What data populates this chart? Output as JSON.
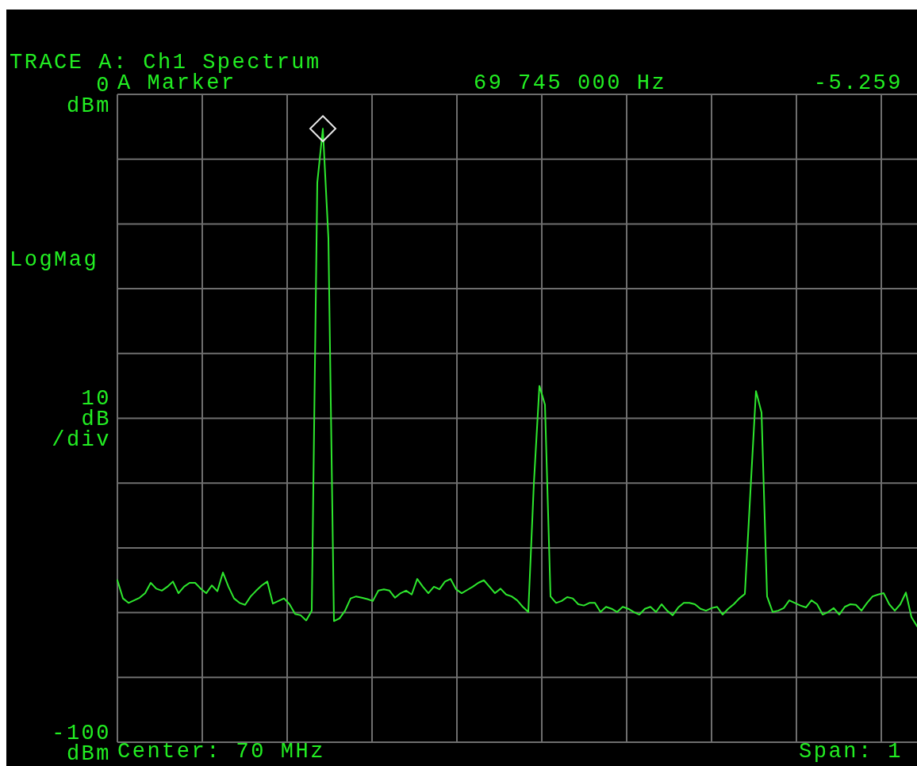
{
  "chart_data": {
    "type": "line",
    "title": "TRACE A: Ch1 Spectrum",
    "ylabel": "10 dB /div",
    "annotations": [
      "A Marker",
      "69 745 000 Hz",
      "-5.259",
      "LogMag",
      "Center: 70 MHz",
      "Span: 1"
    ],
    "categories": [
      null,
      null,
      null,
      null,
      null,
      null,
      null,
      null,
      null,
      null,
      null,
      null,
      null,
      null,
      null,
      null,
      null,
      null,
      null,
      null,
      null,
      null,
      null,
      null,
      null,
      null,
      null,
      null,
      null,
      null,
      null,
      null,
      null,
      null,
      null,
      null,
      null,
      null,
      null,
      null,
      null,
      null,
      null,
      null,
      null,
      null,
      null,
      null,
      null,
      null,
      null,
      null,
      null,
      null,
      null,
      null,
      null,
      null,
      null,
      null,
      null,
      null,
      null,
      null,
      null,
      null,
      null,
      null,
      null,
      null,
      null,
      null,
      null,
      null,
      null,
      null,
      null,
      null,
      null,
      null,
      null,
      null,
      null,
      null,
      null,
      null,
      null,
      null,
      null,
      null,
      null,
      null,
      null,
      null,
      null,
      null,
      null,
      null,
      null,
      null,
      null,
      null,
      null,
      null,
      null,
      null,
      null,
      null,
      null,
      null,
      null,
      null,
      null,
      null,
      null,
      null,
      null,
      null,
      null,
      null,
      null,
      null,
      null,
      null,
      null,
      null,
      null,
      null,
      null,
      null,
      null,
      null,
      null,
      null,
      null,
      null,
      null,
      null,
      null,
      null,
      null,
      null,
      null,
      null,
      null
    ],
    "series": [
      {
        "color": "#2ee82e",
        "values": [
          -75.0,
          -77.8,
          -78.5,
          -78.1,
          -77.7,
          -77.0,
          -75.4,
          -76.3,
          -76.6,
          -76.0,
          -75.2,
          -77.0,
          -76.0,
          -75.4,
          -75.4,
          -76.3,
          -77.0,
          -75.8,
          -76.7,
          -73.8,
          -76.0,
          -77.8,
          -78.5,
          -78.8,
          -77.5,
          -76.6,
          -75.8,
          -75.2,
          -78.6,
          -78.2,
          -77.8,
          -78.7,
          -80.2,
          -80.4,
          -81.2,
          -79.7,
          -13.6,
          -5.3,
          -22.2,
          -81.3,
          -80.9,
          -79.7,
          -77.8,
          -77.5,
          -77.7,
          -77.9,
          -78.2,
          -76.6,
          -76.4,
          -76.6,
          -77.7,
          -77.0,
          -76.6,
          -77.2,
          -74.8,
          -76.0,
          -77.0,
          -76.0,
          -76.4,
          -75.2,
          -74.8,
          -76.4,
          -77.0,
          -76.5,
          -76.0,
          -75.4,
          -75.0,
          -76.0,
          -77.0,
          -76.3,
          -77.2,
          -77.5,
          -78.1,
          -79.1,
          -79.9,
          -60.1,
          -45.0,
          -47.9,
          -77.5,
          -78.5,
          -78.2,
          -77.6,
          -77.8,
          -78.7,
          -78.9,
          -78.5,
          -78.5,
          -79.9,
          -79.1,
          -79.4,
          -79.9,
          -79.1,
          -79.4,
          -79.9,
          -80.3,
          -79.4,
          -79.1,
          -79.9,
          -78.7,
          -79.7,
          -80.4,
          -79.2,
          -78.5,
          -78.5,
          -78.7,
          -79.4,
          -79.7,
          -79.3,
          -79.1,
          -80.3,
          -79.4,
          -78.7,
          -77.8,
          -77.1,
          -61.3,
          -45.8,
          -49.1,
          -77.5,
          -79.9,
          -79.7,
          -79.3,
          -78.1,
          -78.5,
          -78.9,
          -79.2,
          -78.1,
          -78.7,
          -80.3,
          -79.9,
          -79.3,
          -80.3,
          -79.1,
          -78.7,
          -78.8,
          -79.7,
          -78.5,
          -77.5,
          -77.2,
          -77.0,
          -78.7,
          -79.7,
          -78.7,
          -76.9,
          -80.7,
          -82.1
        ]
      }
    ],
    "ylim": [
      -100,
      0
    ],
    "yticks": [
      {
        "value": 0,
        "label": "0 dBm"
      },
      {
        "value": -10,
        "label": null
      },
      {
        "value": -20,
        "label": null
      },
      {
        "value": -30,
        "label": null
      },
      {
        "value": -40,
        "label": null
      },
      {
        "value": -50,
        "label": null
      },
      {
        "value": -60,
        "label": null
      },
      {
        "value": -70,
        "label": null
      },
      {
        "value": -80,
        "label": null
      },
      {
        "value": -90,
        "label": null
      },
      {
        "value": -100,
        "label": "-100 dBm"
      }
    ],
    "grid": true
  }
}
